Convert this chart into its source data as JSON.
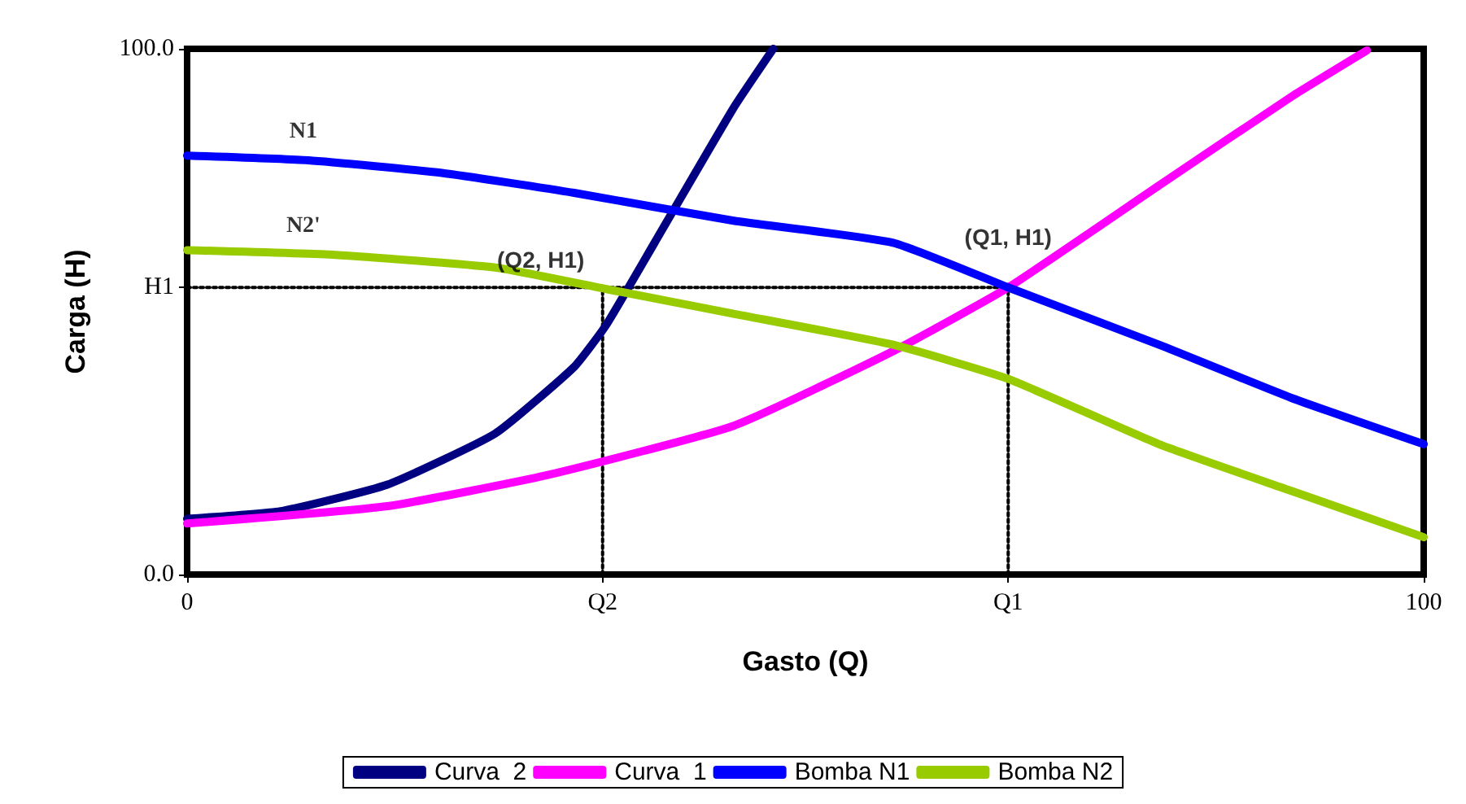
{
  "chart_data": {
    "type": "line",
    "xlabel": "Gasto (Q)",
    "ylabel": "Carga (H)",
    "xlim": [
      0,
      100
    ],
    "ylim": [
      0,
      100
    ],
    "xticks": [
      0,
      {
        "value": 33.6,
        "label": "Q2"
      },
      {
        "value": 66.4,
        "label": "Q1"
      },
      100
    ],
    "yticks": [
      {
        "value": 0,
        "label": "0.0"
      },
      {
        "value": 54.6,
        "label": "H1"
      },
      {
        "value": 100,
        "label": "100.0"
      }
    ],
    "grid": false,
    "legend": "bottom",
    "marker": "none",
    "line_style": "solid",
    "series": [
      {
        "name": "Curva  2",
        "color": "#000080",
        "x": [
          0,
          7.7,
          16.2,
          24.9,
          31.3,
          33.9,
          37.8,
          44.2,
          47.4
        ],
        "values": [
          10.6,
          12.1,
          17.1,
          26.8,
          39.5,
          47.5,
          63.1,
          88.8,
          100
        ]
      },
      {
        "name": "Curva  1",
        "color": "#ff00ff",
        "x": [
          0,
          16.2,
          29.1,
          44.2,
          57.1,
          66.4,
          78.6,
          89.3,
          95.4
        ],
        "values": [
          9.7,
          13,
          18.9,
          28.3,
          42.5,
          54.6,
          74,
          90.9,
          99.7
        ]
      },
      {
        "name": "Bomba N1",
        "color": "#0000ff",
        "x": [
          0,
          9.8,
          20.6,
          31.3,
          44.2,
          57.1,
          66.4,
          78.6,
          89.3,
          100
        ],
        "values": [
          79.7,
          78.8,
          76.4,
          72.6,
          67.3,
          63.1,
          54.6,
          43.7,
          33.6,
          24.8
        ]
      },
      {
        "name": "Bomba N2",
        "color": "#99cc00",
        "x": [
          0,
          12,
          24.9,
          33.9,
          44.2,
          57.1,
          66.4,
          78.6,
          89.3,
          100
        ],
        "values": [
          61.7,
          60.8,
          58.4,
          54.3,
          49.6,
          43.7,
          37.2,
          24.8,
          15.9,
          7.1
        ]
      },
      {
        "color": "#000000",
        "line_style": "dotted",
        "x": [
          0,
          66.4
        ],
        "values": [
          54.6,
          54.6
        ]
      },
      {
        "color": "#000000",
        "line_style": "dotted",
        "x": [
          33.6,
          33.6
        ],
        "values": [
          0,
          54.6
        ]
      },
      {
        "color": "#000000",
        "line_style": "dotted",
        "x": [
          66.4,
          66.4
        ],
        "values": [
          0,
          54.6
        ]
      }
    ],
    "annotations": [
      {
        "text": "N1",
        "x": 9.4,
        "y": 79
      },
      {
        "text": "N2'",
        "x": 9.4,
        "y": 61
      },
      {
        "text": "(Q2, H1)",
        "x": 33.6,
        "y": 54.6
      },
      {
        "text": "(Q1, H1)",
        "x": 66.4,
        "y": 54.6
      }
    ]
  }
}
